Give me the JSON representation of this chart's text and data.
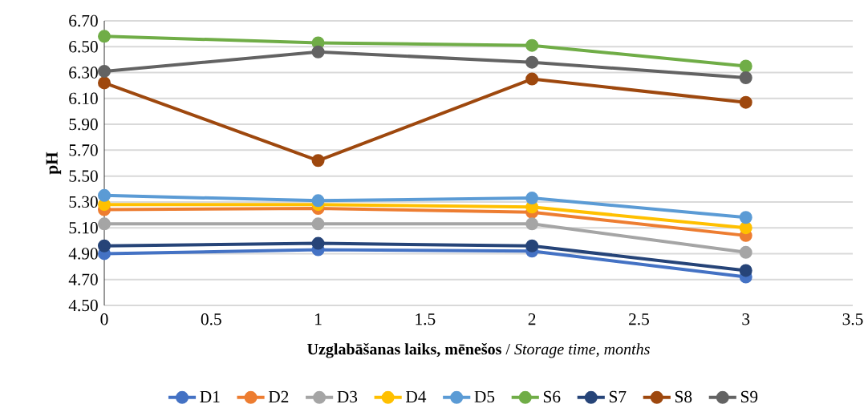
{
  "chart_data": {
    "type": "line",
    "xlabel": "**Uzglabāšanas laiks, mēnešos**  / *Storage time, months*",
    "ylabel": "pH",
    "x": [
      0,
      1,
      2,
      3
    ],
    "xlim": [
      0,
      3.5
    ],
    "xticks": [
      0,
      0.5,
      1,
      1.5,
      2,
      2.5,
      3,
      3.5
    ],
    "ylim": [
      4.5,
      6.7
    ],
    "yticks": [
      {
        "value": 4.5,
        "label": "4.50"
      },
      {
        "value": 4.7,
        "label": "4.70"
      },
      {
        "value": 4.9,
        "label": "4.90"
      },
      {
        "value": 5.1,
        "label": "5.10"
      },
      {
        "value": 5.3,
        "label": "5.30"
      },
      {
        "value": 5.5,
        "label": "5.50"
      },
      {
        "value": 5.7,
        "label": "5.70"
      },
      {
        "value": 5.9,
        "label": "5.90"
      },
      {
        "value": 6.1,
        "label": "6.10"
      },
      {
        "value": 6.3,
        "label": "6.30"
      },
      {
        "value": 6.5,
        "label": "6.50"
      },
      {
        "value": 6.7,
        "label": "6.70"
      }
    ],
    "grid": "y",
    "legend": "bottom",
    "marker": "circle",
    "line_style": "solid",
    "series": [
      {
        "name": "D1",
        "color": "#4472c4",
        "values": [
          4.9,
          4.93,
          4.92,
          4.72
        ]
      },
      {
        "name": "D2",
        "color": "#ed7d31",
        "values": [
          5.24,
          5.25,
          5.22,
          5.04
        ]
      },
      {
        "name": "D3",
        "color": "#a5a5a5",
        "values": [
          5.13,
          5.13,
          5.13,
          4.91
        ]
      },
      {
        "name": "D4",
        "color": "#ffc000",
        "values": [
          5.28,
          5.28,
          5.26,
          5.1
        ]
      },
      {
        "name": "D5",
        "color": "#5b9bd5",
        "values": [
          5.35,
          5.31,
          5.33,
          5.18
        ]
      },
      {
        "name": "S6",
        "color": "#70ad47",
        "values": [
          6.58,
          6.53,
          6.51,
          6.35
        ]
      },
      {
        "name": "S7",
        "color": "#264478",
        "values": [
          4.96,
          4.98,
          4.96,
          4.77
        ]
      },
      {
        "name": "S8",
        "color": "#9e480e",
        "values": [
          6.22,
          5.62,
          6.25,
          6.07
        ]
      },
      {
        "name": "S9",
        "color": "#636363",
        "values": [
          6.31,
          6.46,
          6.38,
          6.26
        ]
      }
    ]
  }
}
